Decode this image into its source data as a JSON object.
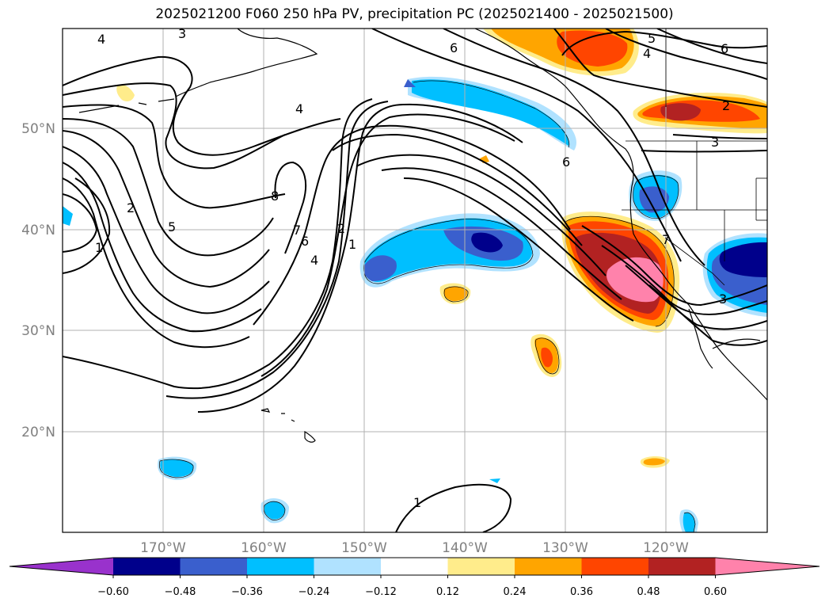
{
  "title": "2025021200 F060 250 hPa PV, precipitation PC (2025021400 - 2025021500)",
  "lat_labels": [
    "50°N",
    "40°N",
    "30°N",
    "20°N"
  ],
  "lon_labels": [
    "170°W",
    "160°W",
    "150°W",
    "140°W",
    "130°W",
    "120°W"
  ],
  "colorbar": {
    "tick_labels": [
      "−0.60",
      "−0.48",
      "−0.36",
      "−0.24",
      "−0.12",
      "0.12",
      "0.24",
      "0.36",
      "0.48",
      "0.60"
    ],
    "colors": [
      "#9932cc",
      "#00008b",
      "#3a5fcd",
      "#00bfff",
      "#b0e2ff",
      "#ffffff",
      "#ffec8b",
      "#ffa500",
      "#ff4500",
      "#b22222",
      "#ff82ab"
    ]
  },
  "contour_labels": [
    "4",
    "3",
    "6",
    "5",
    "4",
    "6",
    "4",
    "2",
    "3",
    "6",
    "8",
    "2",
    "5",
    "1",
    "7",
    "6",
    "4",
    "2",
    "1",
    "7",
    "3",
    "1"
  ]
}
